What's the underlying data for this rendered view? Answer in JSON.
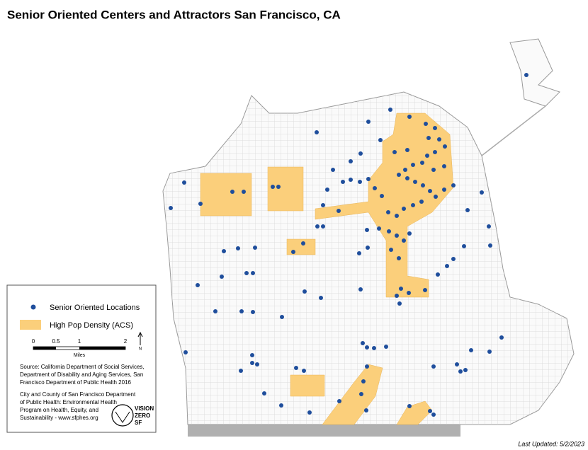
{
  "title": "Senior Oriented Centers and Attractors San Francisco, CA",
  "legend": {
    "items": [
      "Senior Oriented Locations",
      "High Pop Density (ACS)"
    ]
  },
  "scale_bar": {
    "ticks": [
      "0",
      "0.5",
      "1",
      "2"
    ],
    "unit": "Miles"
  },
  "north_arrow": "N",
  "source": [
    "Source: California Department of Social Services,",
    "Department of Disability and Aging Services, San",
    "Francisco Department of Public Health 2016"
  ],
  "credit": [
    "City and County of San Francisco Department",
    "of Public Health: Environmental Health",
    "Program on Health, Equity, and",
    "Sustainability - www.sfphes.org"
  ],
  "logo": [
    "VISION",
    "ZERO",
    "SF"
  ],
  "last_updated": "Last Updated: 5/2/2023"
}
